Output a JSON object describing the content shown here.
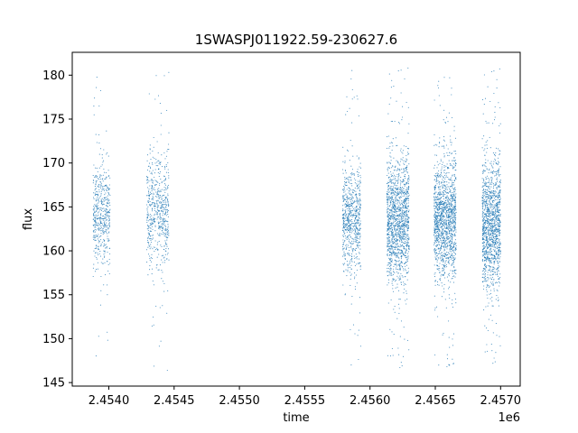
{
  "chart_data": {
    "type": "scatter",
    "title": "1SWASPJ011922.59-230627.6",
    "xlabel": "time",
    "ylabel": "flux",
    "x_offset_label": "1e6",
    "xlim": [
      2453720,
      2457150
    ],
    "ylim": [
      144.6,
      182.6
    ],
    "x_ticks": [
      2.454,
      2.4545,
      2.455,
      2.4555,
      2.456,
      2.4565,
      2.457
    ],
    "x_tick_labels": [
      "2.4540",
      "2.4545",
      "2.4550",
      "2.4555",
      "2.4560",
      "2.4565",
      "2.4570"
    ],
    "y_ticks": [
      145,
      150,
      155,
      160,
      165,
      170,
      175,
      180
    ],
    "y_tick_labels": [
      "145",
      "150",
      "155",
      "160",
      "165",
      "170",
      "175",
      "180"
    ],
    "grid": false,
    "marker_color": "#1f77b4",
    "segments": [
      {
        "x_start": 2453880,
        "x_end": 2454010,
        "y_center": 164.0,
        "y_core": 3.0,
        "y_min": 146.8,
        "y_max": 180.8,
        "n": 500
      },
      {
        "x_start": 2454290,
        "x_end": 2454460,
        "y_center": 164.5,
        "y_core": 3.2,
        "y_min": 146.3,
        "y_max": 180.8,
        "n": 600
      },
      {
        "x_start": 2455790,
        "x_end": 2455930,
        "y_center": 163.5,
        "y_core": 2.9,
        "y_min": 146.9,
        "y_max": 180.6,
        "n": 700
      },
      {
        "x_start": 2456130,
        "x_end": 2456300,
        "y_center": 163.5,
        "y_core": 3.4,
        "y_min": 146.3,
        "y_max": 180.9,
        "n": 1400
      },
      {
        "x_start": 2456490,
        "x_end": 2456660,
        "y_center": 163.5,
        "y_core": 3.4,
        "y_min": 146.4,
        "y_max": 180.8,
        "n": 1400
      },
      {
        "x_start": 2456860,
        "x_end": 2457000,
        "y_center": 163.0,
        "y_core": 3.5,
        "y_min": 146.8,
        "y_max": 180.8,
        "n": 1300
      }
    ]
  }
}
